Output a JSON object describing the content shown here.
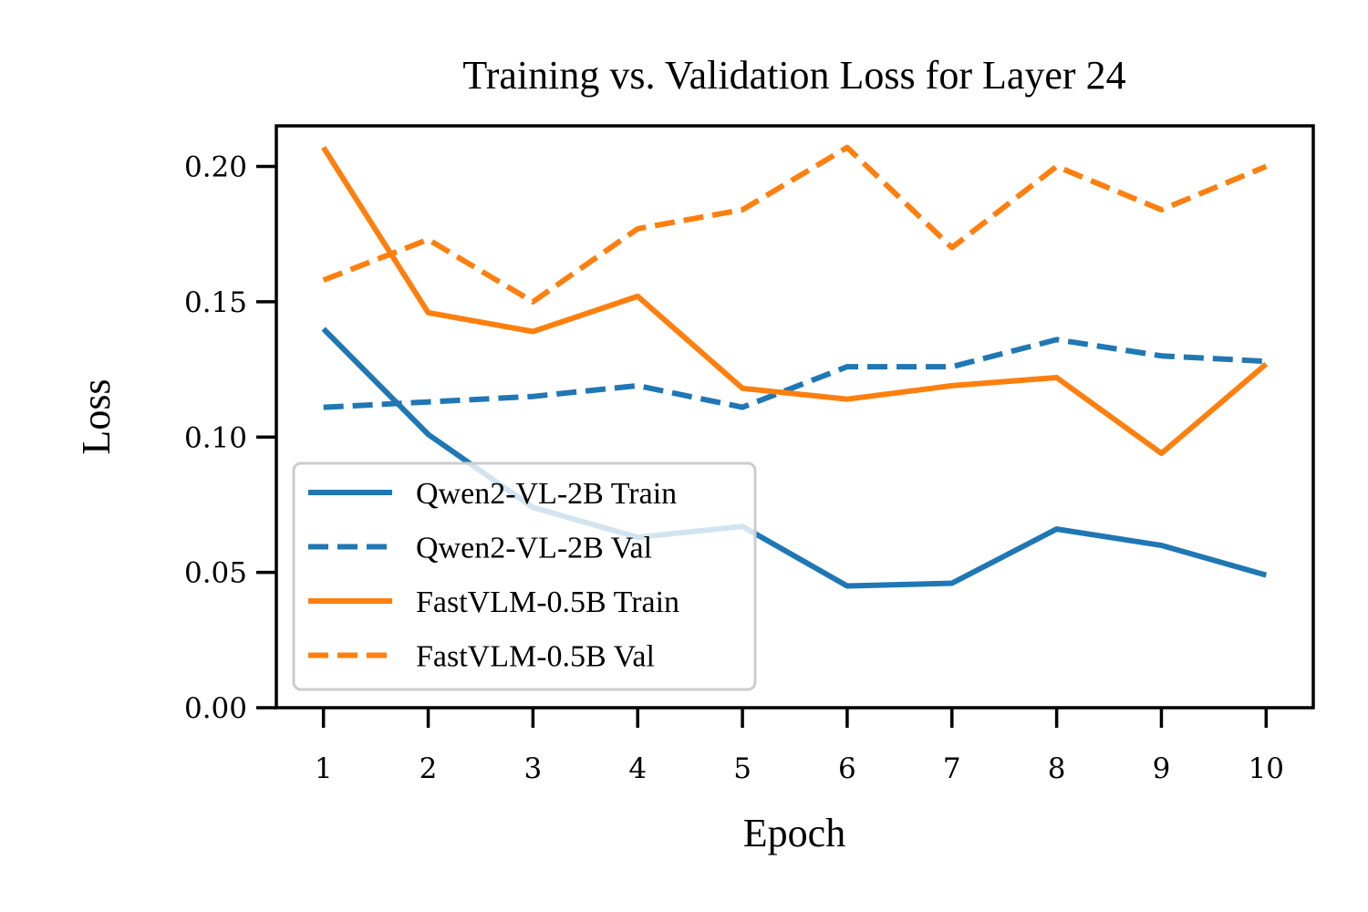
{
  "chart_data": {
    "type": "line",
    "title": "Training vs. Validation Loss for Layer 24",
    "xlabel": "Epoch",
    "ylabel": "Loss",
    "x": [
      1,
      2,
      3,
      4,
      5,
      6,
      7,
      8,
      9,
      10
    ],
    "xlim": [
      0.55,
      10.45
    ],
    "ylim": [
      0,
      0.215
    ],
    "yticks": [
      "0.00",
      "0.05",
      "0.10",
      "0.15",
      "0.20"
    ],
    "xticks": [
      "1",
      "2",
      "3",
      "4",
      "5",
      "6",
      "7",
      "8",
      "9",
      "10"
    ],
    "grid": false,
    "legend_position": "lower-left",
    "series": [
      {
        "name": "Qwen2-VL-2B Train",
        "color": "#1f77b4",
        "style": "solid",
        "values": [
          0.14,
          0.101,
          0.074,
          0.063,
          0.067,
          0.045,
          0.046,
          0.066,
          0.06,
          0.049
        ]
      },
      {
        "name": "Qwen2-VL-2B Val",
        "color": "#1f77b4",
        "style": "dashed",
        "values": [
          0.111,
          0.113,
          0.115,
          0.119,
          0.111,
          0.126,
          0.126,
          0.136,
          0.13,
          0.128
        ]
      },
      {
        "name": "FastVLM-0.5B Train",
        "color": "#ff7f0e",
        "style": "solid",
        "values": [
          0.207,
          0.146,
          0.139,
          0.152,
          0.118,
          0.114,
          0.119,
          0.122,
          0.094,
          0.127
        ]
      },
      {
        "name": "FastVLM-0.5B Val",
        "color": "#ff7f0e",
        "style": "dashed",
        "values": [
          0.158,
          0.173,
          0.15,
          0.177,
          0.184,
          0.207,
          0.17,
          0.2,
          0.184,
          0.2
        ]
      }
    ]
  }
}
